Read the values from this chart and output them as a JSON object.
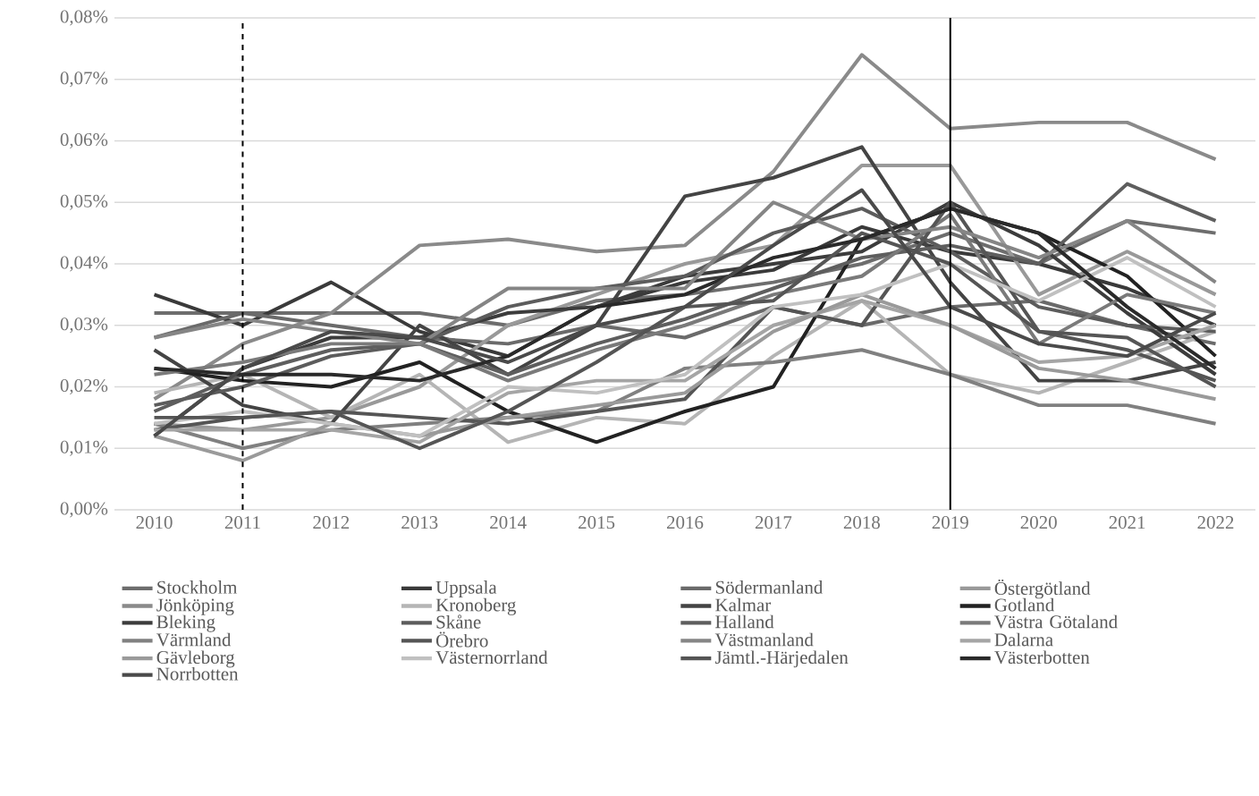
{
  "chart_data": {
    "type": "line",
    "x": [
      2010,
      2011,
      2012,
      2013,
      2014,
      2015,
      2016,
      2017,
      2018,
      2019,
      2020,
      2021,
      2022
    ],
    "xlim": [
      2009.55,
      2022.45
    ],
    "xticks": [
      2010,
      2011,
      2012,
      2013,
      2014,
      2015,
      2016,
      2017,
      2018,
      2019,
      2020,
      2021,
      2022
    ],
    "ylim": [
      0,
      0.08
    ],
    "yticks": [
      {
        "value": 0,
        "label": "0,00%"
      },
      {
        "value": 0.01,
        "label": "0,01%"
      },
      {
        "value": 0.02,
        "label": "0,02%"
      },
      {
        "value": 0.03,
        "label": "0,03%"
      },
      {
        "value": 0.04,
        "label": "0,04%"
      },
      {
        "value": 0.05,
        "label": "0,05%"
      },
      {
        "value": 0.06,
        "label": "0,06%"
      },
      {
        "value": 0.07,
        "label": "0,07%"
      },
      {
        "value": 0.08,
        "label": "0,08%"
      }
    ],
    "grid": "y",
    "legend": "bottom",
    "marker": "none",
    "line_style": "solid",
    "ref_lines": [
      {
        "axis": "x",
        "value": 2011,
        "color": "#000000",
        "line_style": "dashed"
      },
      {
        "axis": "x",
        "value": 2019,
        "color": "#000000",
        "line_style": "solid"
      }
    ],
    "series": [
      {
        "name": "Stockholm",
        "color": "#6d6d6d",
        "values": [
          0.032,
          0.032,
          0.032,
          0.032,
          0.03,
          0.034,
          0.035,
          0.037,
          0.04,
          0.045,
          0.04,
          0.047,
          0.045
        ]
      },
      {
        "name": "Uppsala",
        "color": "#3a3a3a",
        "values": [
          0.035,
          0.03,
          0.037,
          0.029,
          0.025,
          0.033,
          0.037,
          0.039,
          0.046,
          0.042,
          0.04,
          0.036,
          0.03
        ]
      },
      {
        "name": "Södermanland",
        "color": "#6a6a6a",
        "values": [
          0.028,
          0.032,
          0.03,
          0.028,
          0.027,
          0.03,
          0.028,
          0.033,
          0.03,
          0.033,
          0.034,
          0.03,
          0.027
        ]
      },
      {
        "name": "Östergötland",
        "color": "#999999",
        "values": [
          0.014,
          0.013,
          0.015,
          0.02,
          0.03,
          0.035,
          0.04,
          0.043,
          0.056,
          0.056,
          0.035,
          0.042,
          0.035
        ]
      },
      {
        "name": "Jönköping",
        "color": "#8a8a8a",
        "values": [
          0.018,
          0.027,
          0.032,
          0.043,
          0.044,
          0.042,
          0.043,
          0.055,
          0.074,
          0.062,
          0.063,
          0.063,
          0.057
        ]
      },
      {
        "name": "Kronoberg",
        "color": "#b5b5b5",
        "values": [
          0.019,
          0.022,
          0.015,
          0.022,
          0.011,
          0.015,
          0.014,
          0.025,
          0.034,
          0.022,
          0.019,
          0.024,
          0.029
        ]
      },
      {
        "name": "Kalmar",
        "color": "#444444",
        "values": [
          0.026,
          0.017,
          0.014,
          0.03,
          0.022,
          0.03,
          0.051,
          0.054,
          0.059,
          0.037,
          0.021,
          0.021,
          0.024
        ]
      },
      {
        "name": "Gotland",
        "color": "#222222",
        "values": [
          0.023,
          0.021,
          0.02,
          0.024,
          0.016,
          0.011,
          0.016,
          0.02,
          0.044,
          0.049,
          0.045,
          0.038,
          0.025
        ]
      },
      {
        "name": "Bleking",
        "color": "#3c3c3c",
        "values": [
          0.012,
          0.023,
          0.028,
          0.028,
          0.032,
          0.033,
          0.038,
          0.04,
          0.042,
          0.05,
          0.043,
          0.032,
          0.022
        ]
      },
      {
        "name": "Skåne",
        "color": "#5c5c5c",
        "values": [
          0.017,
          0.02,
          0.025,
          0.027,
          0.033,
          0.036,
          0.038,
          0.045,
          0.049,
          0.042,
          0.033,
          0.03,
          0.029
        ]
      },
      {
        "name": "Halland",
        "color": "#5e5e5e",
        "values": [
          0.016,
          0.022,
          0.026,
          0.027,
          0.022,
          0.027,
          0.031,
          0.036,
          0.041,
          0.043,
          0.04,
          0.053,
          0.047
        ]
      },
      {
        "name": "Västra Götaland",
        "color": "#7a7a7a",
        "values": [
          0.022,
          0.024,
          0.027,
          0.027,
          0.021,
          0.026,
          0.03,
          0.035,
          0.038,
          0.048,
          0.027,
          0.035,
          0.032
        ]
      },
      {
        "name": "Värmland",
        "color": "#808080",
        "values": [
          0.014,
          0.01,
          0.013,
          0.014,
          0.015,
          0.016,
          0.023,
          0.024,
          0.026,
          0.022,
          0.017,
          0.017,
          0.014
        ]
      },
      {
        "name": "Örebro",
        "color": "#555555",
        "values": [
          0.013,
          0.015,
          0.016,
          0.015,
          0.014,
          0.016,
          0.018,
          0.033,
          0.03,
          0.05,
          0.029,
          0.026,
          0.021
        ]
      },
      {
        "name": "Västmanland",
        "color": "#858585",
        "values": [
          0.028,
          0.031,
          0.029,
          0.027,
          0.036,
          0.036,
          0.036,
          0.05,
          0.044,
          0.046,
          0.041,
          0.047,
          0.037
        ]
      },
      {
        "name": "Dalarna",
        "color": "#a5a5a5",
        "values": [
          0.013,
          0.013,
          0.013,
          0.011,
          0.019,
          0.021,
          0.021,
          0.03,
          0.034,
          0.03,
          0.024,
          0.025,
          0.03
        ]
      },
      {
        "name": "Gävleborg",
        "color": "#9a9a9a",
        "values": [
          0.012,
          0.008,
          0.014,
          0.012,
          0.015,
          0.017,
          0.019,
          0.029,
          0.035,
          0.03,
          0.023,
          0.021,
          0.018
        ]
      },
      {
        "name": "Västernorrland",
        "color": "#c0c0c0",
        "values": [
          0.014,
          0.016,
          0.014,
          0.012,
          0.02,
          0.019,
          0.022,
          0.033,
          0.035,
          0.04,
          0.034,
          0.041,
          0.033
        ]
      },
      {
        "name": "Jämtl.-Härjedalen",
        "color": "#555555",
        "values": [
          0.015,
          0.015,
          0.016,
          0.01,
          0.016,
          0.024,
          0.033,
          0.034,
          0.045,
          0.04,
          0.029,
          0.028,
          0.02
        ]
      },
      {
        "name": "Västerbotten",
        "color": "#2a2a2a",
        "values": [
          0.023,
          0.022,
          0.022,
          0.021,
          0.025,
          0.033,
          0.035,
          0.041,
          0.044,
          0.049,
          0.045,
          0.033,
          0.023
        ]
      },
      {
        "name": "Norrbotten",
        "color": "#4a4a4a",
        "values": [
          0.012,
          0.023,
          0.029,
          0.028,
          0.024,
          0.03,
          0.033,
          0.043,
          0.052,
          0.033,
          0.027,
          0.025,
          0.032
        ]
      }
    ]
  }
}
